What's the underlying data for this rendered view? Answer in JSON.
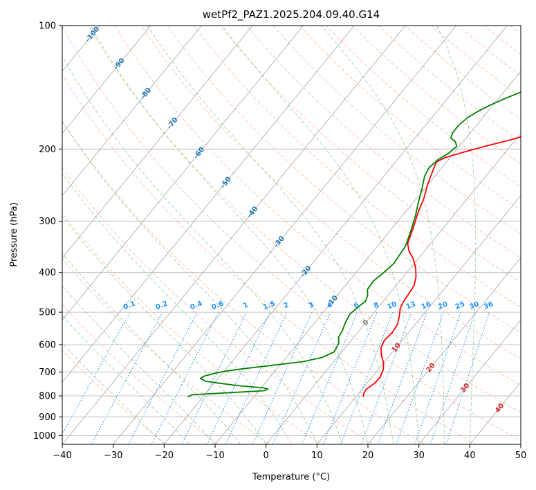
{
  "chart_data": {
    "type": "line",
    "title": "wetPf2_PAZ1.2025.204.09.40.G14",
    "xlabel": "Temperature (°C)",
    "ylabel": "Pressure (hPa)",
    "xlim": [
      -40,
      50
    ],
    "ylim": [
      1050,
      100
    ],
    "y_scale": "log",
    "x_ticks": [
      -40,
      -30,
      -20,
      -10,
      0,
      10,
      20,
      30,
      40,
      50
    ],
    "y_ticks": [
      100,
      200,
      300,
      400,
      500,
      600,
      700,
      800,
      900,
      1000
    ],
    "grid": true,
    "legend": "none",
    "colors": {
      "temperature": "#ff0000",
      "dewpoint": "#008000",
      "isotherm": "#808080",
      "dry_adiabat": "#ff7f50",
      "moist_adiabat": "#2ca02c",
      "mixing_ratio": "#1e90ff",
      "gridline": "#b0b0b0",
      "isotherm_label": "#1f77b4",
      "warm_label": "#d62728",
      "zero_label": "#808080"
    },
    "series": [
      {
        "points": [
          [
            11.5,
            805
          ],
          [
            11,
            790
          ],
          [
            10.8,
            770
          ],
          [
            11.5,
            745
          ],
          [
            11.6,
            720
          ],
          [
            11,
            690
          ],
          [
            10,
            665
          ],
          [
            8.5,
            640
          ],
          [
            7,
            610
          ],
          [
            6.5,
            585
          ],
          [
            6.8,
            560
          ],
          [
            6.5,
            535
          ],
          [
            5.5,
            510
          ],
          [
            4.5,
            490
          ],
          [
            4,
            470
          ],
          [
            3.8,
            450
          ],
          [
            3.5,
            430
          ],
          [
            2.5,
            410
          ],
          [
            1,
            390
          ],
          [
            -1,
            370
          ],
          [
            -3,
            355
          ],
          [
            -4.5,
            340
          ],
          [
            -6,
            310
          ],
          [
            -7.5,
            285
          ],
          [
            -8.5,
            265
          ],
          [
            -10,
            245
          ],
          [
            -11,
            230
          ],
          [
            -12,
            215
          ],
          [
            -11,
            210
          ],
          [
            -8,
            203
          ],
          [
            -5,
            197
          ],
          [
            -1,
            190
          ],
          [
            3,
            182
          ],
          [
            6,
            172
          ],
          [
            8,
            162
          ],
          [
            11,
            152
          ],
          [
            14,
            143
          ],
          [
            17,
            133
          ],
          [
            20,
            124
          ],
          [
            24,
            115
          ],
          [
            28,
            106
          ],
          [
            31,
            100
          ]
        ]
      },
      {
        "points": [
          [
            -23,
            805
          ],
          [
            -22.5,
            795
          ],
          [
            -15,
            785
          ],
          [
            -9,
            777
          ],
          [
            -8.5,
            770
          ],
          [
            -9.5,
            765
          ],
          [
            -15,
            755
          ],
          [
            -19,
            745
          ],
          [
            -22,
            737
          ],
          [
            -23.5,
            725
          ],
          [
            -23,
            715
          ],
          [
            -21.5,
            705
          ],
          [
            -20,
            697
          ],
          [
            -17,
            688
          ],
          [
            -12,
            675
          ],
          [
            -6,
            660
          ],
          [
            -3,
            645
          ],
          [
            -1.5,
            625
          ],
          [
            -2,
            595
          ],
          [
            -3,
            575
          ],
          [
            -3.3,
            555
          ],
          [
            -4,
            530
          ],
          [
            -4.5,
            505
          ],
          [
            -4,
            485
          ],
          [
            -3.5,
            470
          ],
          [
            -4,
            455
          ],
          [
            -5,
            440
          ],
          [
            -5.2,
            420
          ],
          [
            -4.5,
            400
          ],
          [
            -4,
            380
          ],
          [
            -4.3,
            360
          ],
          [
            -4.5,
            345
          ],
          [
            -6,
            315
          ],
          [
            -7.5,
            290
          ],
          [
            -9,
            270
          ],
          [
            -10.5,
            250
          ],
          [
            -12,
            233
          ],
          [
            -12.5,
            222
          ],
          [
            -12,
            212
          ],
          [
            -11,
            205
          ],
          [
            -10.5,
            197
          ],
          [
            -11.5,
            192
          ],
          [
            -13,
            188
          ],
          [
            -13.5,
            182
          ],
          [
            -13.5,
            175
          ],
          [
            -13,
            168
          ],
          [
            -12,
            162
          ],
          [
            -10.5,
            156
          ],
          [
            -8.5,
            150
          ],
          [
            -6.5,
            145
          ],
          [
            -5,
            140
          ],
          [
            -4,
            135
          ],
          [
            -3,
            128
          ],
          [
            -2,
            121
          ],
          [
            -1,
            114
          ],
          [
            0,
            108
          ],
          [
            1,
            102
          ],
          [
            2,
            100
          ]
        ]
      }
    ],
    "isotherm_labels": [
      "-100",
      "-90",
      "-80",
      "-70",
      "-60",
      "-50",
      "-40",
      "-30",
      "-20",
      "-10",
      "0",
      "10",
      "20",
      "30",
      "40"
    ],
    "mixing_ratio_labels": [
      "0.1",
      "0.2",
      "0.4",
      "0.6",
      "1",
      "1.5",
      "2",
      "3",
      "4",
      "6",
      "8",
      "10",
      "13",
      "16",
      "20",
      "25",
      "30",
      "36"
    ]
  }
}
